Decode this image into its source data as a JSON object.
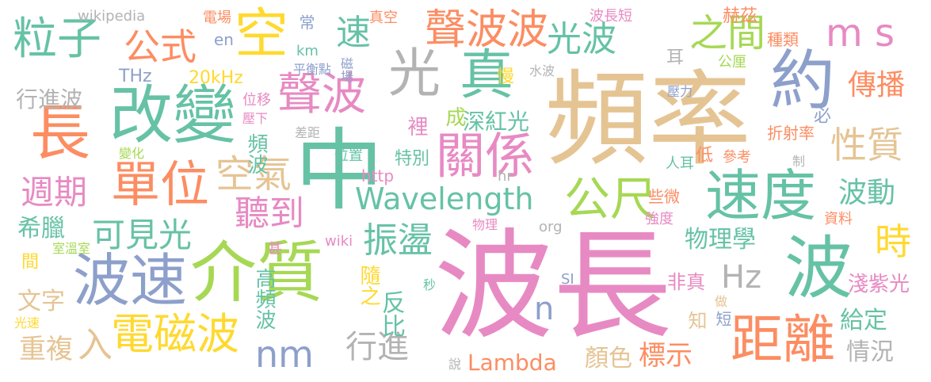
{
  "palette": {
    "green": "#66c2a5",
    "orange": "#fc8d62",
    "blue": "#8da0cb",
    "pink": "#e78ac3",
    "lime": "#a6d854",
    "yellow": "#ffd92f",
    "tan": "#e5c494",
    "gray": "#b3b3b3"
  },
  "words": [
    {
      "text": "波長",
      "color": "pink"
    },
    {
      "text": "頻率",
      "color": "tan"
    },
    {
      "text": "中",
      "color": "green"
    },
    {
      "text": "介質",
      "color": "lime"
    },
    {
      "text": "波速",
      "color": "blue"
    },
    {
      "text": "改變",
      "color": "green"
    },
    {
      "text": "長",
      "color": "orange"
    },
    {
      "text": "約",
      "color": "blue"
    },
    {
      "text": "波",
      "color": "green"
    },
    {
      "text": "速度",
      "color": "green"
    },
    {
      "text": "關係",
      "color": "pink"
    },
    {
      "text": "距離",
      "color": "orange"
    },
    {
      "text": "空",
      "color": "yellow"
    },
    {
      "text": "真",
      "color": "green"
    },
    {
      "text": "光",
      "color": "gray"
    },
    {
      "text": "聲波",
      "color": "pink"
    },
    {
      "text": "單位",
      "color": "orange"
    },
    {
      "text": "電磁波",
      "color": "yellow"
    },
    {
      "text": "公尺",
      "color": "lime"
    },
    {
      "text": "Wavelength",
      "color": "green"
    },
    {
      "text": "粒子",
      "color": "green"
    },
    {
      "text": "公式",
      "color": "orange"
    },
    {
      "text": "聲波波",
      "color": "orange"
    },
    {
      "text": "光波",
      "color": "green"
    },
    {
      "text": "之間",
      "color": "lime"
    },
    {
      "text": "m s",
      "color": "pink"
    },
    {
      "text": "時",
      "color": "yellow"
    },
    {
      "text": "性質",
      "color": "tan"
    },
    {
      "text": "傳播",
      "color": "orange"
    },
    {
      "text": "波動",
      "color": "green"
    },
    {
      "text": "nm",
      "color": "blue"
    },
    {
      "text": "行進",
      "color": "gray"
    },
    {
      "text": "Hz",
      "color": "gray"
    },
    {
      "text": "n",
      "color": "blue"
    },
    {
      "text": "振盪",
      "color": "green"
    },
    {
      "text": "聽到",
      "color": "pink"
    },
    {
      "text": "空氣",
      "color": "tan"
    },
    {
      "text": "週期",
      "color": "pink"
    },
    {
      "text": "可見光",
      "color": "green"
    },
    {
      "text": "速",
      "color": "green"
    },
    {
      "text": "入",
      "color": "tan"
    },
    {
      "text": "Lambda",
      "color": "orange"
    },
    {
      "text": "物理學",
      "color": "green"
    },
    {
      "text": "行進波",
      "color": "gray"
    },
    {
      "text": "重複",
      "color": "tan"
    },
    {
      "text": "文字",
      "color": "tan"
    },
    {
      "text": "希臘",
      "color": "green"
    },
    {
      "text": "高頻波",
      "color": "green"
    },
    {
      "text": "反比",
      "color": "green"
    },
    {
      "text": "隨之",
      "color": "yellow"
    },
    {
      "text": "深紅光",
      "color": "green"
    },
    {
      "text": "頻波",
      "color": "green"
    },
    {
      "text": "特別",
      "color": "green"
    },
    {
      "text": "顏色",
      "color": "tan"
    },
    {
      "text": "標示",
      "color": "orange"
    },
    {
      "text": "給定",
      "color": "green"
    },
    {
      "text": "情況",
      "color": "gray"
    },
    {
      "text": "淺紫光",
      "color": "pink"
    },
    {
      "text": "非真",
      "color": "pink"
    },
    {
      "text": "20kHz",
      "color": "yellow"
    },
    {
      "text": "THz",
      "color": "blue"
    },
    {
      "text": "en",
      "color": "blue"
    },
    {
      "text": "km",
      "color": "green"
    },
    {
      "text": "http",
      "color": "pink"
    },
    {
      "text": "wikipedia",
      "color": "gray"
    },
    {
      "text": "wiki",
      "color": "pink"
    },
    {
      "text": "org",
      "color": "gray"
    },
    {
      "text": "hr",
      "color": "gray"
    },
    {
      "text": "SI",
      "color": "blue"
    },
    {
      "text": "電場",
      "color": "orange"
    },
    {
      "text": "磁場",
      "color": "blue"
    },
    {
      "text": "常",
      "color": "blue"
    },
    {
      "text": "真空",
      "color": "orange"
    },
    {
      "text": "平衡點",
      "color": "blue"
    },
    {
      "text": "水波",
      "color": "gray"
    },
    {
      "text": "波長短",
      "color": "pink"
    },
    {
      "text": "赫茲",
      "color": "orange"
    },
    {
      "text": "種類",
      "color": "orange"
    },
    {
      "text": "公厘",
      "color": "lime"
    },
    {
      "text": "壓力",
      "color": "blue"
    },
    {
      "text": "耳",
      "color": "gray"
    },
    {
      "text": "慢",
      "color": "yellow"
    },
    {
      "text": "位移",
      "color": "pink"
    },
    {
      "text": "壓下",
      "color": "pink"
    },
    {
      "text": "差距",
      "color": "gray"
    },
    {
      "text": "位置",
      "color": "green"
    },
    {
      "text": "變化",
      "color": "lime"
    },
    {
      "text": "裡",
      "color": "pink"
    },
    {
      "text": "成",
      "color": "lime"
    },
    {
      "text": "折射率",
      "color": "orange"
    },
    {
      "text": "必",
      "color": "blue"
    },
    {
      "text": "參考",
      "color": "orange"
    },
    {
      "text": "人耳",
      "color": "green"
    },
    {
      "text": "低",
      "color": "orange"
    },
    {
      "text": "制",
      "color": "gray"
    },
    {
      "text": "些微",
      "color": "orange"
    },
    {
      "text": "強度",
      "color": "pink"
    },
    {
      "text": "資料",
      "color": "orange"
    },
    {
      "text": "物理",
      "color": "pink"
    },
    {
      "text": "甚",
      "color": "pink"
    },
    {
      "text": "室溫室",
      "color": "lime"
    },
    {
      "text": "間",
      "color": "yellow"
    },
    {
      "text": "光速",
      "color": "yellow"
    },
    {
      "text": "秒",
      "color": "green"
    },
    {
      "text": "知",
      "color": "tan"
    },
    {
      "text": "做",
      "color": "tan"
    },
    {
      "text": "短",
      "color": "blue"
    },
    {
      "text": "說",
      "color": "gray"
    }
  ]
}
